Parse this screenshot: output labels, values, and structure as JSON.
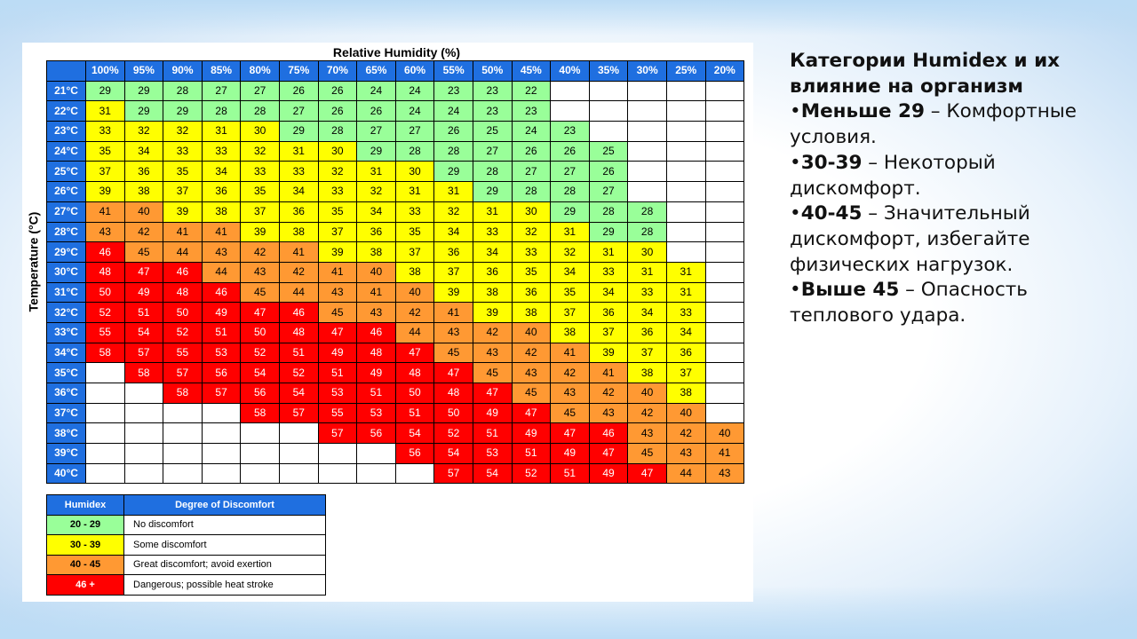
{
  "side_panel": {
    "heading": "Категории Humidex и их влияние на организм",
    "items": [
      {
        "bullet": "•",
        "bold": "Меньше 29",
        "rest": " – Комфортные условия."
      },
      {
        "bullet": "•",
        "bold": "30-39",
        "rest": " – Некоторый дискомфорт."
      },
      {
        "bullet": "•",
        "bold": "40-45",
        "rest": " – Значительный дискомфорт, избегайте физических нагрузок."
      },
      {
        "bullet": "•",
        "bold": "Выше 45",
        "rest": " – Опасность теплового удара."
      }
    ]
  },
  "chart_data": {
    "type": "heatmap",
    "xlabel": "Relative Humidity (%)",
    "ylabel": "Temperature (°C)",
    "x": [
      "100%",
      "95%",
      "90%",
      "85%",
      "80%",
      "75%",
      "70%",
      "65%",
      "60%",
      "55%",
      "50%",
      "45%",
      "40%",
      "35%",
      "30%",
      "25%",
      "20%"
    ],
    "y": [
      "21°C",
      "22°C",
      "23°C",
      "24°C",
      "25°C",
      "26°C",
      "27°C",
      "28°C",
      "29°C",
      "30°C",
      "31°C",
      "32°C",
      "33°C",
      "34°C",
      "35°C",
      "36°C",
      "37°C",
      "38°C",
      "39°C",
      "40°C"
    ],
    "values": [
      [
        29,
        29,
        28,
        27,
        27,
        26,
        26,
        24,
        24,
        23,
        23,
        22,
        null,
        null,
        null,
        null,
        null
      ],
      [
        31,
        29,
        29,
        28,
        28,
        27,
        26,
        26,
        24,
        24,
        23,
        23,
        null,
        null,
        null,
        null,
        null
      ],
      [
        33,
        32,
        32,
        31,
        30,
        29,
        28,
        27,
        27,
        26,
        25,
        24,
        23,
        null,
        null,
        null,
        null
      ],
      [
        35,
        34,
        33,
        33,
        32,
        31,
        30,
        29,
        28,
        28,
        27,
        26,
        26,
        25,
        null,
        null,
        null
      ],
      [
        37,
        36,
        35,
        34,
        33,
        33,
        32,
        31,
        30,
        29,
        28,
        27,
        27,
        26,
        null,
        null,
        null
      ],
      [
        39,
        38,
        37,
        36,
        35,
        34,
        33,
        32,
        31,
        31,
        29,
        28,
        28,
        27,
        null,
        null,
        null
      ],
      [
        41,
        40,
        39,
        38,
        37,
        36,
        35,
        34,
        33,
        32,
        31,
        30,
        29,
        28,
        28,
        null,
        null
      ],
      [
        43,
        42,
        41,
        41,
        39,
        38,
        37,
        36,
        35,
        34,
        33,
        32,
        31,
        29,
        28,
        null,
        null
      ],
      [
        46,
        45,
        44,
        43,
        42,
        41,
        39,
        38,
        37,
        36,
        34,
        33,
        32,
        31,
        30,
        null,
        null
      ],
      [
        48,
        47,
        46,
        44,
        43,
        42,
        41,
        40,
        38,
        37,
        36,
        35,
        34,
        33,
        31,
        31,
        null
      ],
      [
        50,
        49,
        48,
        46,
        45,
        44,
        43,
        41,
        40,
        39,
        38,
        36,
        35,
        34,
        33,
        31,
        null
      ],
      [
        52,
        51,
        50,
        49,
        47,
        46,
        45,
        43,
        42,
        41,
        39,
        38,
        37,
        36,
        34,
        33,
        null
      ],
      [
        55,
        54,
        52,
        51,
        50,
        48,
        47,
        46,
        44,
        43,
        42,
        40,
        38,
        37,
        36,
        34,
        null
      ],
      [
        58,
        57,
        55,
        53,
        52,
        51,
        49,
        48,
        47,
        45,
        43,
        42,
        41,
        39,
        37,
        36,
        null
      ],
      [
        null,
        58,
        57,
        56,
        54,
        52,
        51,
        49,
        48,
        47,
        45,
        43,
        42,
        41,
        38,
        37,
        null
      ],
      [
        null,
        null,
        58,
        57,
        56,
        54,
        53,
        51,
        50,
        48,
        47,
        45,
        43,
        42,
        40,
        38,
        null
      ],
      [
        null,
        null,
        null,
        null,
        58,
        57,
        55,
        53,
        51,
        50,
        49,
        47,
        45,
        43,
        42,
        40,
        null
      ],
      [
        null,
        null,
        null,
        null,
        null,
        null,
        57,
        56,
        54,
        52,
        51,
        49,
        47,
        46,
        43,
        42,
        40
      ],
      [
        null,
        null,
        null,
        null,
        null,
        null,
        null,
        null,
        56,
        54,
        53,
        51,
        49,
        47,
        45,
        43,
        41
      ],
      [
        null,
        null,
        null,
        null,
        null,
        null,
        null,
        null,
        null,
        57,
        54,
        52,
        51,
        49,
        47,
        44,
        43
      ]
    ],
    "color_scale": [
      {
        "min": 20,
        "max": 29,
        "color": "#99ff99"
      },
      {
        "min": 30,
        "max": 39,
        "color": "#ffff00"
      },
      {
        "min": 40,
        "max": 45,
        "color": "#ff9933"
      },
      {
        "min": 46,
        "max": 99,
        "color": "#ff0000"
      }
    ],
    "legend": {
      "headers": [
        "Humidex",
        "Degree of Discomfort"
      ],
      "rows": [
        {
          "range": "20 - 29",
          "desc": "No discomfort",
          "color": "#99ff99"
        },
        {
          "range": "30 - 39",
          "desc": "Some discomfort",
          "color": "#ffff00"
        },
        {
          "range": "40 - 45",
          "desc": "Great discomfort; avoid exertion",
          "color": "#ff9933"
        },
        {
          "range": "46 +",
          "desc": "Dangerous; possible heat stroke",
          "color": "#ff0000"
        }
      ]
    }
  }
}
